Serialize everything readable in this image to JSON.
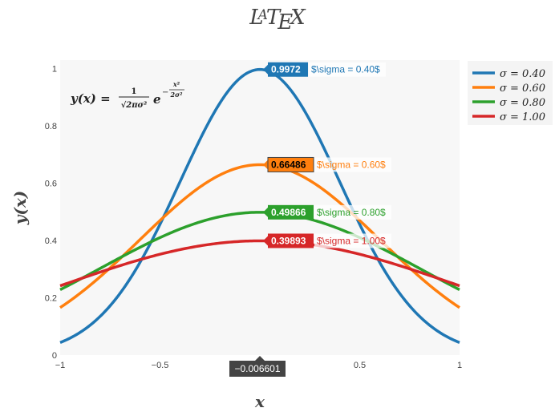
{
  "chart_data": {
    "type": "line",
    "title": "LaTeX",
    "xlabel": "x",
    "ylabel": "y(x)",
    "annotation": "y(x) = 1/√(2πσ²) e^(−x²/2σ²)",
    "xlim": [
      -1,
      1
    ],
    "ylim": [
      0,
      1.03
    ],
    "x_ticks": [
      -1,
      -0.5,
      0,
      0.5,
      1
    ],
    "x_tick_labels": [
      "−1",
      "−0.5",
      "0",
      "0.5",
      "1"
    ],
    "y_ticks": [
      0,
      0.2,
      0.4,
      0.6,
      0.8,
      1
    ],
    "y_tick_labels": [
      "0",
      "0.2",
      "0.4",
      "0.6",
      "0.8",
      "1"
    ],
    "grid": false,
    "legend_position": "top-right",
    "hover_x": "−0.006601",
    "series": [
      {
        "name": "σ = 0.40",
        "sigma": 0.4,
        "color": "#1f77b4",
        "hover_value": "0.9972",
        "hover_label": "$\\sigma = 0.40$"
      },
      {
        "name": "σ = 0.60",
        "sigma": 0.6,
        "color": "#ff7f0e",
        "hover_value": "0.66486",
        "hover_label": "$\\sigma = 0.60$"
      },
      {
        "name": "σ = 0.80",
        "sigma": 0.8,
        "color": "#2ca02c",
        "hover_value": "0.49866",
        "hover_label": "$\\sigma = 0.80$"
      },
      {
        "name": "σ = 1.00",
        "sigma": 1.0,
        "color": "#d62728",
        "hover_value": "0.39893",
        "hover_label": "$\\sigma = 1.00$"
      }
    ]
  }
}
